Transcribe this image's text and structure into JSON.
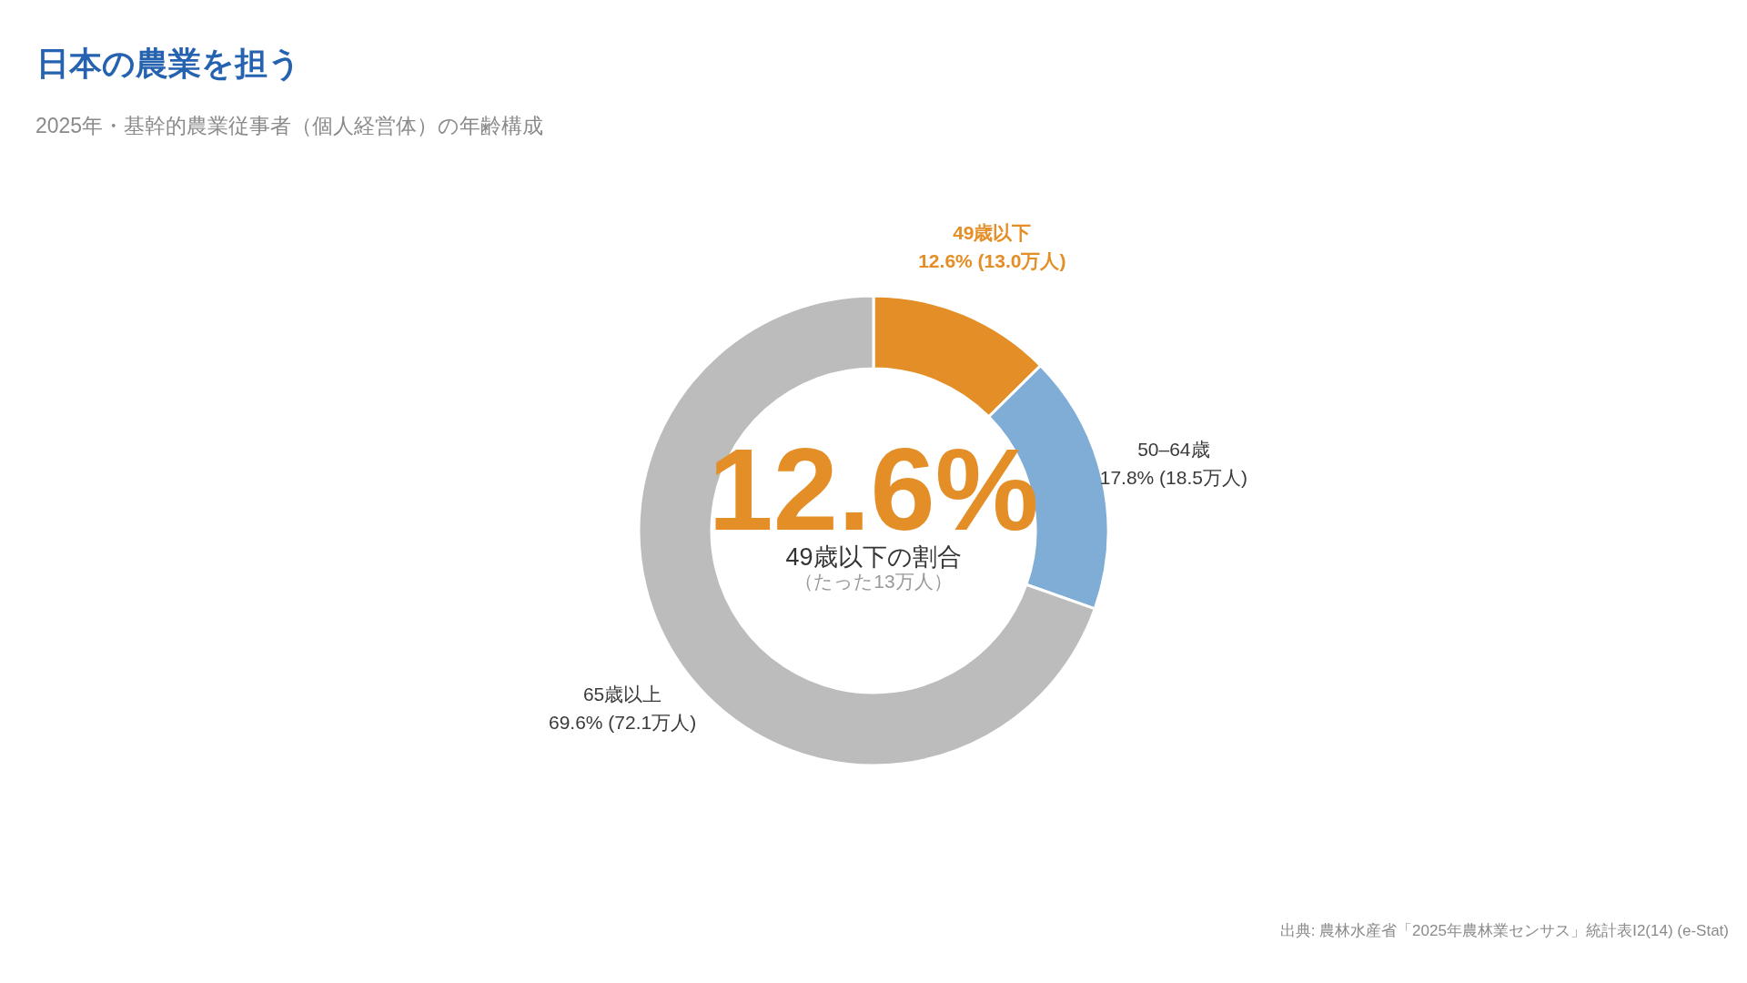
{
  "chart_data": {
    "type": "donut",
    "title": "日本の農業を担う",
    "subtitle": "2025年・基幹的農業従事者（個人経営体）の年齢構成",
    "categories": [
      "49歳以下",
      "50–64歳",
      "65歳以上"
    ],
    "values": [
      12.6,
      17.8,
      69.6
    ],
    "colors": [
      "#e48e27",
      "#7fadd6",
      "#bcbcbc"
    ],
    "value_labels": [
      "12.6% (13.0万人)",
      "17.8% (18.5万人)",
      "69.6% (72.1万人)"
    ],
    "annotations": [
      "12.6%",
      "49歳以下の割合",
      "（たった13万人）",
      "出典: 農林水産省「2025年農林業センサス」統計表Ⅰ2(14) (e-Stat)"
    ]
  }
}
